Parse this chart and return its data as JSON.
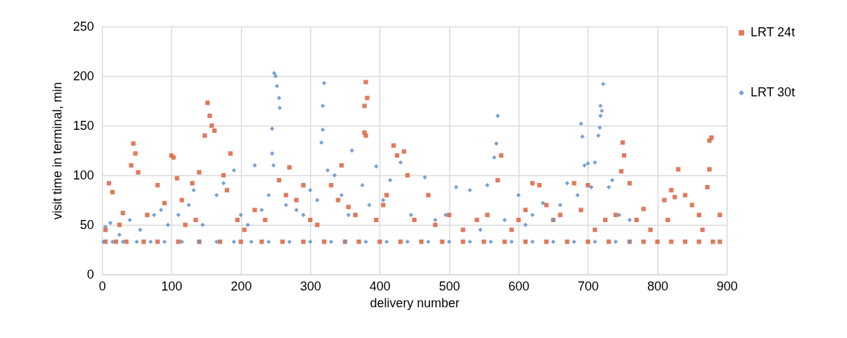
{
  "chart_data": {
    "type": "scatter",
    "xlabel": "delivery number",
    "ylabel": "visit time in terminal, min",
    "xlim": [
      0,
      900
    ],
    "ylim": [
      0,
      250
    ],
    "xticks": [
      0,
      100,
      200,
      300,
      400,
      500,
      600,
      700,
      800,
      900
    ],
    "yticks": [
      0,
      50,
      100,
      150,
      200,
      250
    ],
    "grid": true,
    "legend": "right",
    "series": [
      {
        "name": "LRT 24t",
        "color": "#dd6b4a",
        "marker": "square",
        "x": [
          5,
          20,
          35,
          60,
          80,
          110,
          140,
          170,
          200,
          230,
          260,
          290,
          320,
          350,
          370,
          400,
          430,
          460,
          490,
          520,
          550,
          580,
          610,
          640,
          670,
          700,
          730,
          760,
          780,
          800,
          820,
          840,
          860,
          880,
          890,
          5,
          10,
          15,
          25,
          30,
          42,
          45,
          48,
          52,
          65,
          80,
          90,
          100,
          103,
          108,
          115,
          120,
          130,
          135,
          140,
          148,
          152,
          155,
          158,
          162,
          175,
          180,
          185,
          195,
          205,
          220,
          235,
          255,
          265,
          270,
          280,
          290,
          300,
          310,
          330,
          340,
          345,
          355,
          365,
          378,
          378,
          380,
          380,
          382,
          395,
          405,
          410,
          420,
          425,
          435,
          440,
          450,
          470,
          480,
          500,
          520,
          540,
          555,
          570,
          575,
          590,
          600,
          610,
          620,
          630,
          640,
          650,
          660,
          680,
          690,
          700,
          710,
          725,
          740,
          748,
          750,
          752,
          760,
          770,
          780,
          790,
          810,
          815,
          820,
          825,
          830,
          840,
          850,
          860,
          865,
          872,
          875,
          875,
          878,
          890
        ],
        "values": [
          33,
          33,
          33,
          33,
          33,
          33,
          33,
          33,
          33,
          33,
          33,
          33,
          33,
          33,
          33,
          33,
          33,
          33,
          33,
          33,
          33,
          33,
          33,
          33,
          33,
          33,
          33,
          33,
          33,
          33,
          33,
          33,
          33,
          33,
          33,
          45,
          92,
          83,
          50,
          62,
          110,
          132,
          122,
          103,
          60,
          90,
          72,
          120,
          118,
          97,
          75,
          50,
          92,
          55,
          103,
          140,
          173,
          160,
          150,
          145,
          100,
          85,
          122,
          55,
          45,
          65,
          55,
          95,
          80,
          108,
          75,
          90,
          55,
          50,
          90,
          75,
          110,
          68,
          60,
          170,
          143,
          194,
          140,
          178,
          55,
          70,
          80,
          130,
          120,
          124,
          100,
          55,
          80,
          50,
          60,
          45,
          55,
          60,
          95,
          120,
          45,
          55,
          65,
          92,
          90,
          70,
          55,
          60,
          92,
          65,
          90,
          45,
          55,
          60,
          104,
          133,
          120,
          92,
          55,
          66,
          45,
          75,
          55,
          85,
          78,
          106,
          80,
          70,
          60,
          45,
          88,
          106,
          135,
          138,
          60
        ]
      },
      {
        "name": "LRT 30t",
        "color": "#6a96cc",
        "marker": "diamond",
        "x": [
          2,
          15,
          30,
          50,
          70,
          90,
          115,
          140,
          165,
          190,
          215,
          240,
          270,
          300,
          330,
          350,
          380,
          410,
          440,
          470,
          500,
          530,
          560,
          590,
          620,
          650,
          680,
          710,
          740,
          760,
          5,
          12,
          25,
          40,
          55,
          75,
          85,
          95,
          110,
          125,
          132,
          145,
          165,
          175,
          190,
          200,
          210,
          220,
          230,
          240,
          245,
          247,
          245,
          248,
          250,
          252,
          255,
          256,
          265,
          280,
          290,
          300,
          310,
          316,
          318,
          318,
          320,
          325,
          335,
          345,
          355,
          360,
          375,
          385,
          395,
          405,
          415,
          430,
          445,
          465,
          480,
          495,
          510,
          530,
          545,
          555,
          565,
          568,
          570,
          580,
          600,
          610,
          620,
          635,
          650,
          660,
          670,
          685,
          690,
          692,
          695,
          700,
          705,
          710,
          715,
          717,
          718,
          718,
          720,
          722,
          730,
          735,
          745,
          760
        ],
        "values": [
          33,
          33,
          33,
          33,
          33,
          33,
          33,
          33,
          33,
          33,
          33,
          33,
          33,
          33,
          33,
          33,
          33,
          33,
          33,
          33,
          33,
          33,
          33,
          33,
          33,
          33,
          33,
          33,
          33,
          33,
          48,
          52,
          40,
          55,
          45,
          60,
          65,
          50,
          60,
          70,
          85,
          50,
          80,
          92,
          105,
          60,
          50,
          110,
          65,
          80,
          122,
          110,
          147,
          203,
          200,
          190,
          178,
          168,
          70,
          65,
          60,
          85,
          75,
          133,
          146,
          170,
          193,
          105,
          100,
          80,
          60,
          125,
          90,
          70,
          109,
          75,
          95,
          113,
          60,
          98,
          55,
          60,
          88,
          85,
          45,
          90,
          118,
          132,
          160,
          55,
          80,
          50,
          60,
          72,
          55,
          70,
          92,
          80,
          152,
          139,
          110,
          112,
          88,
          113,
          140,
          148,
          160,
          170,
          165,
          192,
          88,
          95,
          60,
          55
        ]
      }
    ]
  }
}
